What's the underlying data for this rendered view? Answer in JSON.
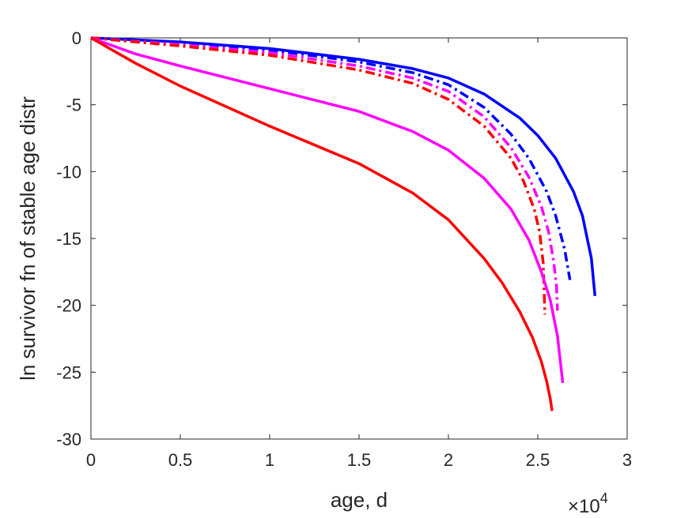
{
  "chart_data": {
    "type": "line",
    "xlabel": "age, d",
    "ylabel": "ln survivor fn of stable age distr",
    "x_multiplier": "×10",
    "x_multiplier_exponent": "4",
    "xlim": [
      0,
      30000
    ],
    "ylim": [
      -30,
      0
    ],
    "xticks": [
      0,
      5000,
      10000,
      15000,
      20000,
      25000,
      30000
    ],
    "xtick_labels": [
      "0",
      "0.5",
      "1",
      "1.5",
      "2",
      "2.5",
      "3"
    ],
    "yticks": [
      0,
      -5,
      -10,
      -15,
      -20,
      -25,
      -30
    ],
    "ytick_labels": [
      "0",
      "-5",
      "-10",
      "-15",
      "-20",
      "-25",
      "-30"
    ],
    "grid": false,
    "series": [
      {
        "color": "#0000ff",
        "style": "solid",
        "x": [
          0,
          5000,
          10000,
          15000,
          18000,
          20000,
          22000,
          24000,
          25000,
          26000,
          27000,
          27500,
          28000,
          28200
        ],
        "y": [
          0,
          -0.3,
          -0.8,
          -1.6,
          -2.3,
          -3.0,
          -4.2,
          -6.0,
          -7.3,
          -9.0,
          -11.5,
          -13.3,
          -16.5,
          -19.3
        ]
      },
      {
        "color": "#0000ff",
        "style": "dashdot",
        "x": [
          0,
          5000,
          10000,
          15000,
          18000,
          20000,
          22000,
          23500,
          24500,
          25500,
          26000,
          26500,
          26800
        ],
        "y": [
          0,
          -0.4,
          -0.9,
          -1.8,
          -2.6,
          -3.5,
          -5.2,
          -7.2,
          -9.0,
          -11.5,
          -13.3,
          -15.8,
          -18.1
        ]
      },
      {
        "color": "#ff00ff",
        "style": "dashdot",
        "x": [
          0,
          5000,
          10000,
          15000,
          18000,
          20000,
          22000,
          23500,
          24500,
          25200,
          25600,
          25900,
          26050,
          26100
        ],
        "y": [
          0,
          -0.5,
          -1.1,
          -2.1,
          -3.0,
          -4.0,
          -5.9,
          -8.2,
          -10.4,
          -12.6,
          -14.5,
          -16.8,
          -18.6,
          -20.4
        ]
      },
      {
        "color": "#ff0000",
        "style": "dashdot",
        "x": [
          0,
          5000,
          10000,
          15000,
          18000,
          20000,
          22000,
          23500,
          24200,
          24800,
          25100,
          25300,
          25400
        ],
        "y": [
          0,
          -0.6,
          -1.3,
          -2.4,
          -3.4,
          -4.6,
          -6.6,
          -9.0,
          -10.7,
          -12.8,
          -14.5,
          -16.8,
          -20.7
        ]
      },
      {
        "color": "#ff00ff",
        "style": "solid",
        "x": [
          0,
          2500,
          5000,
          10000,
          15000,
          18000,
          20000,
          22000,
          23500,
          24500,
          25200,
          25700,
          26100,
          26400
        ],
        "y": [
          0,
          -1.2,
          -2.1,
          -3.8,
          -5.5,
          -7.0,
          -8.4,
          -10.5,
          -12.8,
          -15.1,
          -17.5,
          -19.6,
          -22.3,
          -25.8
        ]
      },
      {
        "color": "#ff0000",
        "style": "solid",
        "x": [
          0,
          2500,
          5000,
          10000,
          15000,
          18000,
          20000,
          22000,
          23000,
          24000,
          24700,
          25200,
          25500,
          25700,
          25800
        ],
        "y": [
          0,
          -1.9,
          -3.6,
          -6.6,
          -9.4,
          -11.6,
          -13.6,
          -16.5,
          -18.3,
          -20.5,
          -22.4,
          -24.2,
          -25.7,
          -27.0,
          -27.9
        ]
      }
    ]
  }
}
